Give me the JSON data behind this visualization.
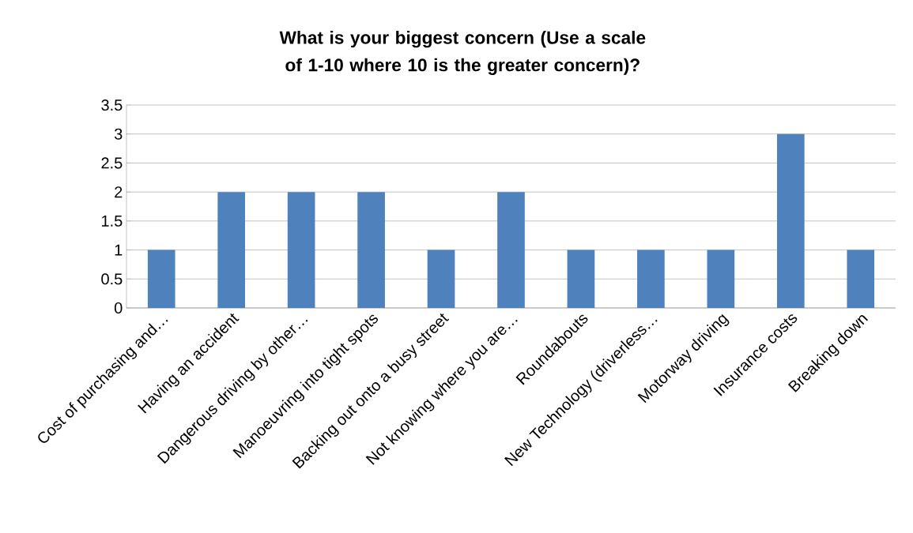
{
  "chart_data": {
    "type": "bar",
    "title": "What is your biggest concern (Use a scale of 1-10 where 10 is the greater concern)?",
    "categories": [
      "Cost of purchasing and…",
      "Having an accident",
      "Dangerous driving by other…",
      "Manoeuvring into tight spots",
      "Backing out onto a busy street",
      "Not knowing where you are…",
      "Roundabouts",
      "New Technology (driverless…",
      "Motorway driving",
      "Insurance costs",
      "Breaking down"
    ],
    "values": [
      1,
      2,
      2,
      2,
      1,
      2,
      1,
      1,
      1,
      3,
      1
    ],
    "color": "#4f81bd",
    "ylim": [
      0,
      3.5
    ],
    "yticks": [
      0,
      0.5,
      1,
      1.5,
      2,
      2.5,
      3,
      3.5
    ],
    "grid": "y"
  }
}
